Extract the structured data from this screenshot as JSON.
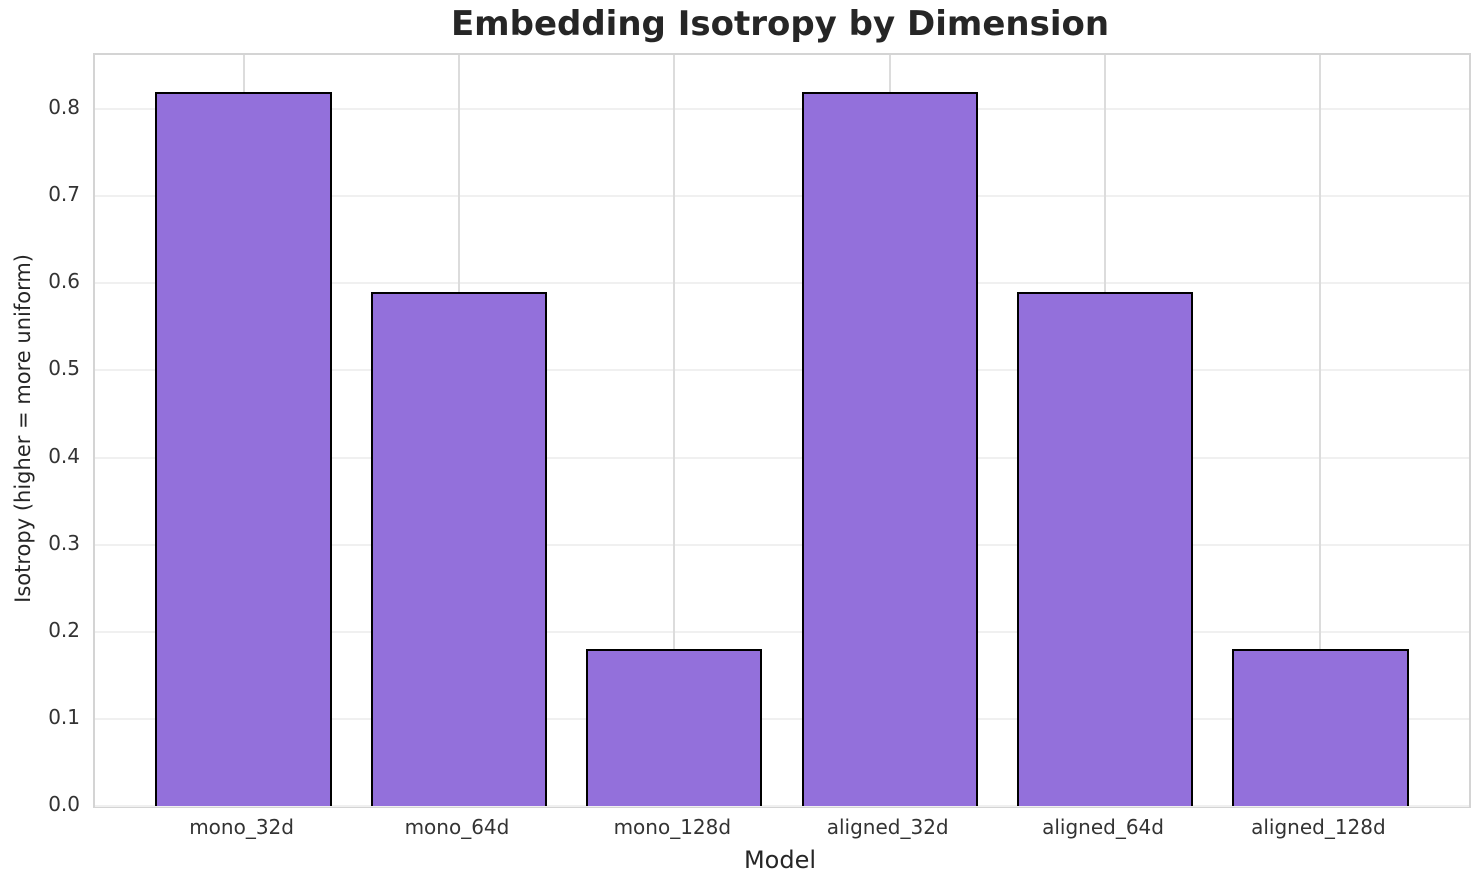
{
  "chart_data": {
    "type": "bar",
    "title": "Embedding Isotropy by Dimension",
    "xlabel": "Model",
    "ylabel": "Isotropy (higher = more uniform)",
    "categories": [
      "mono_32d",
      "mono_64d",
      "mono_128d",
      "aligned_32d",
      "aligned_64d",
      "aligned_128d"
    ],
    "values": [
      0.82,
      0.59,
      0.18,
      0.82,
      0.59,
      0.18
    ],
    "yticks": [
      0.0,
      0.1,
      0.2,
      0.3,
      0.4,
      0.5,
      0.6,
      0.7,
      0.8
    ],
    "ytick_labels": [
      "0.0",
      "0.1",
      "0.2",
      "0.3",
      "0.4",
      "0.5",
      "0.6",
      "0.7",
      "0.8"
    ],
    "ylim": [
      0,
      0.862
    ],
    "xlim": [
      -0.69,
      5.69
    ],
    "bar_width": 0.8,
    "grid": true,
    "legend": false,
    "colors": {
      "bar_fill": "#9370DB",
      "bar_edge": "#000000",
      "grid_horizontal": "#f0f0f0",
      "grid_vertical": "#dcdcdc",
      "spine": "#d4d4d4",
      "text": "#262626",
      "tick_text": "#333333",
      "background": "#ffffff"
    }
  }
}
